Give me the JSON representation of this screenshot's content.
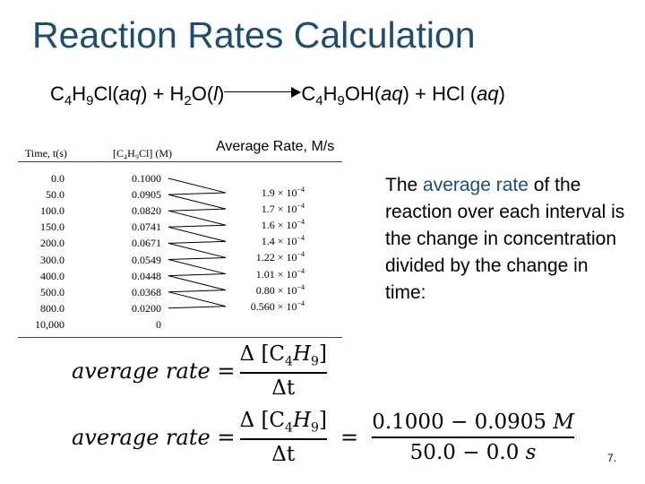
{
  "slide": {
    "title": "Reaction Rates Calculation",
    "page_number": "7."
  },
  "reaction": {
    "reactant1": "C",
    "r1_sub1": "4",
    "r1_h": "H",
    "r1_sub2": "9",
    "r1_rest": "Cl(",
    "r1_state": "aq",
    "r1_close": ")",
    "plus1": " + ",
    "reactant2": "H",
    "r2_sub": "2",
    "r2_rest": "O(",
    "r2_state": "l",
    "r2_close": ")",
    "product1": "C",
    "p1_sub1": "4",
    "p1_h": "H",
    "p1_sub2": "9",
    "p1_rest": "OH(",
    "p1_state": "aq",
    "p1_close": ")",
    "plus2": " + ",
    "product2": "HCl (",
    "p2_state": "aq",
    "p2_close": ")"
  },
  "table": {
    "rate_header": "Average Rate, M/s",
    "col_time_header": "Time, t(s)",
    "col_conc_header": "[C₄H₉Cl] (M)",
    "rows": [
      {
        "time": "0.0",
        "conc": "0.1000"
      },
      {
        "time": "50.0",
        "conc": "0.0905"
      },
      {
        "time": "100.0",
        "conc": "0.0820"
      },
      {
        "time": "150.0",
        "conc": "0.0741"
      },
      {
        "time": "200.0",
        "conc": "0.0671"
      },
      {
        "time": "300.0",
        "conc": "0.0549"
      },
      {
        "time": "400.0",
        "conc": "0.0448"
      },
      {
        "time": "500.0",
        "conc": "0.0368"
      },
      {
        "time": "800.0",
        "conc": "0.0200"
      },
      {
        "time": "10,000",
        "conc": "0"
      }
    ],
    "rates": [
      {
        "mantissa": "1.9 × 10",
        "exp": "−4"
      },
      {
        "mantissa": "1.7 × 10",
        "exp": "−4"
      },
      {
        "mantissa": "1.6 × 10",
        "exp": "−4"
      },
      {
        "mantissa": "1.4 × 10",
        "exp": "−4"
      },
      {
        "mantissa": "1.22 × 10",
        "exp": "−4"
      },
      {
        "mantissa": "1.01 × 10",
        "exp": "−4"
      },
      {
        "mantissa": "0.80 × 10",
        "exp": "−4"
      },
      {
        "mantissa": "0.560 × 10",
        "exp": "−4"
      }
    ]
  },
  "description": {
    "part1": "The ",
    "highlight": "average rate",
    "part2": " of the reaction over each interval is the change in concentration divided by the change in time:"
  },
  "formula1": {
    "lhs": "average rate",
    "equals": "=",
    "num": "Δ [C",
    "num_sub1": "4",
    "num_h": "H",
    "num_sub2": "9",
    "num_close": "]",
    "den": "Δt"
  },
  "formula2": {
    "lhs": "average rate",
    "equals1": "=",
    "num": "Δ [C",
    "num_sub1": "4",
    "num_h": "H",
    "num_sub2": "9",
    "num_close": "]",
    "den": "Δt",
    "equals2": "=",
    "num2": "0.1000 − 0.0905",
    "num2_unit": "M",
    "den2": "50.0 − 0.0",
    "den2_unit": "s"
  }
}
